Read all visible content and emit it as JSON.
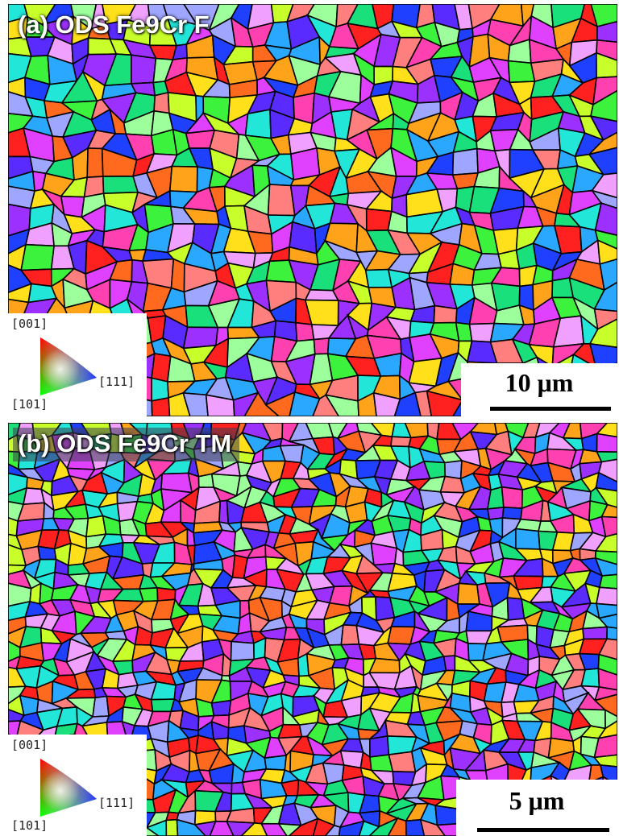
{
  "figure": {
    "panels": [
      {
        "label": "(a) ODS Fe9Cr F",
        "scale_bar": "10 μm",
        "legend": {
          "top": "[001]",
          "right": "[111]",
          "bottom": "[101]"
        }
      },
      {
        "label": "(b) ODS Fe9Cr TM",
        "scale_bar": "5 μm",
        "legend": {
          "top": "[001]",
          "right": "[111]",
          "bottom": "[101]"
        }
      }
    ]
  },
  "colors": {
    "palette": [
      "#ff2020",
      "#ff6a1f",
      "#ffa31a",
      "#ffe01a",
      "#c8ff2a",
      "#3cf23c",
      "#19e07a",
      "#22e6d8",
      "#2aa8ff",
      "#2040ff",
      "#5a2bff",
      "#9b30ff",
      "#e040ff",
      "#ff40b0",
      "#ff7f7f",
      "#9cff9c",
      "#9fa6ff",
      "#f0a0ff"
    ],
    "boundary": "#000000"
  }
}
